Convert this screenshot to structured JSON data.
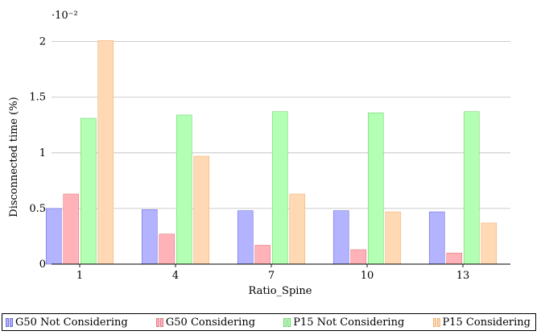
{
  "chart_data": {
    "type": "bar",
    "categories": [
      "1",
      "4",
      "7",
      "10",
      "13"
    ],
    "xlabel": "Ratio_Spine",
    "ylabel": "Disconnected time (%)",
    "scale_label": "·10⁻²",
    "y_ticks": [
      "0",
      "0.5",
      "1",
      "1.5",
      "2"
    ],
    "ylim": [
      0,
      2.2
    ],
    "grid": true,
    "legend_position": "bottom",
    "series": [
      {
        "name": "G50 Not Considering",
        "values": [
          0.5,
          0.49,
          0.48,
          0.48,
          0.47
        ],
        "fill": "#b3b3ff",
        "stroke": "#6f6fdd"
      },
      {
        "name": "G50 Considering",
        "values": [
          0.63,
          0.27,
          0.17,
          0.13,
          0.1
        ],
        "fill": "#ffb3b8",
        "stroke": "#e07a82"
      },
      {
        "name": "P15 Not Considering",
        "values": [
          1.31,
          1.34,
          1.37,
          1.36,
          1.37
        ],
        "fill": "#b3ffb3",
        "stroke": "#6fd46f"
      },
      {
        "name": "P15 Considering",
        "values": [
          2.01,
          0.97,
          0.63,
          0.47,
          0.37
        ],
        "fill": "#ffd9b3",
        "stroke": "#f0b27a"
      }
    ]
  }
}
